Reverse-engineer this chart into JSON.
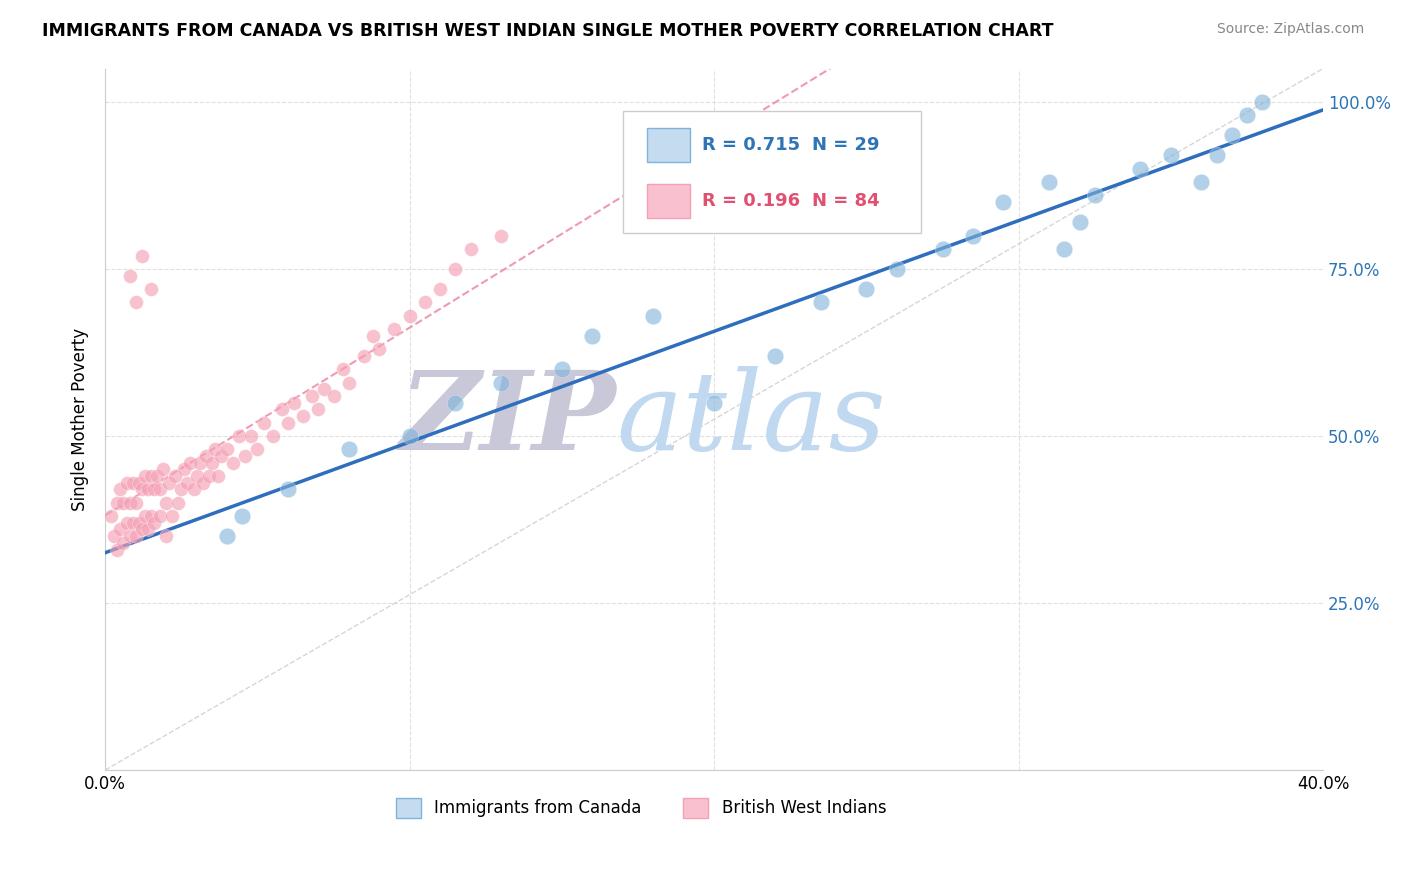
{
  "title": "IMMIGRANTS FROM CANADA VS BRITISH WEST INDIAN SINGLE MOTHER POVERTY CORRELATION CHART",
  "source_text": "Source: ZipAtlas.com",
  "ylabel": "Single Mother Poverty",
  "xlim": [
    0.0,
    0.4
  ],
  "ylim": [
    0.0,
    1.05
  ],
  "legend_r1": "R = 0.715",
  "legend_n1": "N = 29",
  "legend_r2": "R = 0.196",
  "legend_n2": "N = 84",
  "color_canada": "#7FB3D9",
  "color_bwi": "#F4A0B5",
  "color_trendline_canada": "#2F6EBD",
  "color_trendline_bwi": "#E87090",
  "color_diagonal": "#CCCCCC",
  "watermark_zip_color": "#C8C8D8",
  "watermark_atlas_color": "#C0D8F0",
  "r_canada_color": "#2E75B6",
  "r_bwi_color": "#E05070",
  "canada_x": [
    0.04,
    0.045,
    0.06,
    0.08,
    0.1,
    0.115,
    0.13,
    0.15,
    0.16,
    0.18,
    0.2,
    0.22,
    0.235,
    0.25,
    0.26,
    0.275,
    0.285,
    0.295,
    0.31,
    0.315,
    0.32,
    0.325,
    0.34,
    0.35,
    0.36,
    0.365,
    0.37,
    0.375,
    0.38
  ],
  "canada_y": [
    0.35,
    0.38,
    0.42,
    0.48,
    0.5,
    0.55,
    0.58,
    0.6,
    0.65,
    0.68,
    0.55,
    0.62,
    0.7,
    0.72,
    0.75,
    0.78,
    0.8,
    0.85,
    0.88,
    0.78,
    0.82,
    0.86,
    0.9,
    0.92,
    0.88,
    0.92,
    0.95,
    0.98,
    1.0
  ],
  "bwi_x": [
    0.002,
    0.003,
    0.004,
    0.004,
    0.005,
    0.005,
    0.006,
    0.006,
    0.007,
    0.007,
    0.008,
    0.008,
    0.009,
    0.009,
    0.01,
    0.01,
    0.011,
    0.011,
    0.012,
    0.012,
    0.013,
    0.013,
    0.014,
    0.014,
    0.015,
    0.015,
    0.016,
    0.016,
    0.017,
    0.018,
    0.018,
    0.019,
    0.02,
    0.02,
    0.021,
    0.022,
    0.023,
    0.024,
    0.025,
    0.026,
    0.027,
    0.028,
    0.029,
    0.03,
    0.031,
    0.032,
    0.033,
    0.034,
    0.035,
    0.036,
    0.037,
    0.038,
    0.04,
    0.042,
    0.044,
    0.046,
    0.048,
    0.05,
    0.052,
    0.055,
    0.058,
    0.06,
    0.062,
    0.065,
    0.068,
    0.07,
    0.072,
    0.075,
    0.078,
    0.08,
    0.085,
    0.088,
    0.09,
    0.095,
    0.1,
    0.105,
    0.11,
    0.115,
    0.12,
    0.13,
    0.008,
    0.01,
    0.012,
    0.015
  ],
  "bwi_y": [
    0.38,
    0.35,
    0.4,
    0.33,
    0.42,
    0.36,
    0.4,
    0.34,
    0.43,
    0.37,
    0.4,
    0.35,
    0.43,
    0.37,
    0.4,
    0.35,
    0.43,
    0.37,
    0.42,
    0.36,
    0.44,
    0.38,
    0.42,
    0.36,
    0.44,
    0.38,
    0.42,
    0.37,
    0.44,
    0.42,
    0.38,
    0.45,
    0.4,
    0.35,
    0.43,
    0.38,
    0.44,
    0.4,
    0.42,
    0.45,
    0.43,
    0.46,
    0.42,
    0.44,
    0.46,
    0.43,
    0.47,
    0.44,
    0.46,
    0.48,
    0.44,
    0.47,
    0.48,
    0.46,
    0.5,
    0.47,
    0.5,
    0.48,
    0.52,
    0.5,
    0.54,
    0.52,
    0.55,
    0.53,
    0.56,
    0.54,
    0.57,
    0.56,
    0.6,
    0.58,
    0.62,
    0.65,
    0.63,
    0.66,
    0.68,
    0.7,
    0.72,
    0.75,
    0.78,
    0.8,
    0.74,
    0.7,
    0.77,
    0.72
  ]
}
